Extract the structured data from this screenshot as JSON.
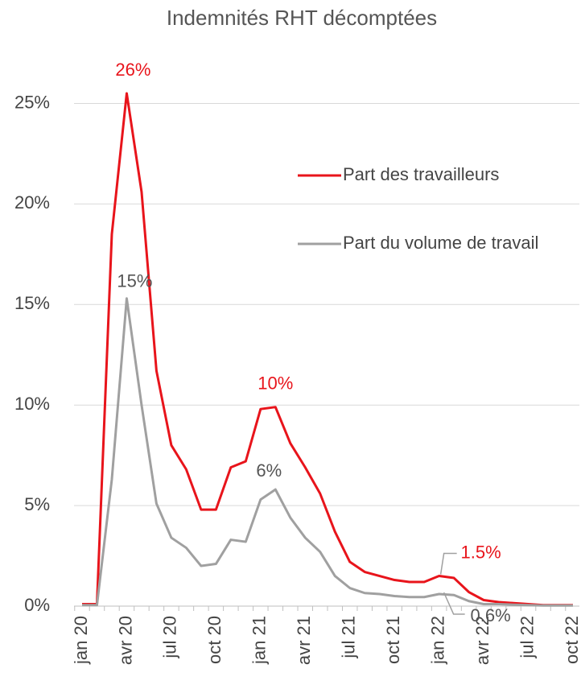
{
  "chart_data": {
    "type": "line",
    "title": "Indemnités RHT décomptées",
    "categories": [
      "jan 20",
      null,
      null,
      "avr 20",
      null,
      null,
      "jul 20",
      null,
      null,
      "oct 20",
      null,
      null,
      "jan 21",
      null,
      null,
      "avr 21",
      null,
      null,
      "jul 21",
      null,
      null,
      "oct 21",
      null,
      null,
      "jan 22",
      null,
      null,
      "avr 22",
      null,
      null,
      "jul 22",
      null,
      null,
      "oct 22"
    ],
    "series": [
      {
        "name": "Part des travailleurs",
        "color": "#e8141b",
        "values": [
          0.1,
          0.1,
          18.5,
          25.5,
          20.6,
          11.7,
          8.0,
          6.8,
          4.8,
          4.8,
          6.9,
          7.2,
          9.8,
          9.9,
          8.1,
          6.9,
          5.6,
          3.7,
          2.2,
          1.7,
          1.5,
          1.3,
          1.2,
          1.2,
          1.5,
          1.4,
          0.7,
          0.3,
          0.2,
          0.15,
          0.1,
          0.05,
          0.05,
          0.05
        ],
        "value_labels": [
          null,
          null,
          null,
          "26%",
          null,
          null,
          null,
          null,
          null,
          null,
          null,
          null,
          null,
          "10%",
          null,
          null,
          null,
          null,
          null,
          null,
          null,
          null,
          null,
          null,
          "1.5%",
          null,
          null,
          null,
          null,
          null,
          null,
          null,
          null,
          null
        ]
      },
      {
        "name": "Part du volume de travail",
        "color": "#a0a0a0",
        "values": [
          0.05,
          0.05,
          6.3,
          15.3,
          10.0,
          5.1,
          3.4,
          2.9,
          2.0,
          2.1,
          3.3,
          3.2,
          5.3,
          5.8,
          4.4,
          3.4,
          2.7,
          1.5,
          0.9,
          0.65,
          0.6,
          0.5,
          0.45,
          0.45,
          0.6,
          0.55,
          0.25,
          0.1,
          0.1,
          0.07,
          0.05,
          0.03,
          0.03,
          0.03
        ],
        "value_labels": [
          null,
          null,
          null,
          "15%",
          null,
          null,
          null,
          null,
          null,
          null,
          null,
          null,
          null,
          "6%",
          null,
          null,
          null,
          null,
          null,
          null,
          null,
          null,
          null,
          null,
          "0.6%",
          null,
          null,
          null,
          null,
          null,
          null,
          null,
          null,
          null
        ]
      }
    ],
    "ylim": [
      0,
      25.5
    ],
    "yticks": [
      {
        "value": 0,
        "label": "0%"
      },
      {
        "value": 5,
        "label": "5%"
      },
      {
        "value": 10,
        "label": "10%"
      },
      {
        "value": 15,
        "label": "15%"
      },
      {
        "value": 20,
        "label": "20%"
      },
      {
        "value": 25,
        "label": "25%"
      }
    ],
    "grid": true,
    "legend": "upper right"
  }
}
